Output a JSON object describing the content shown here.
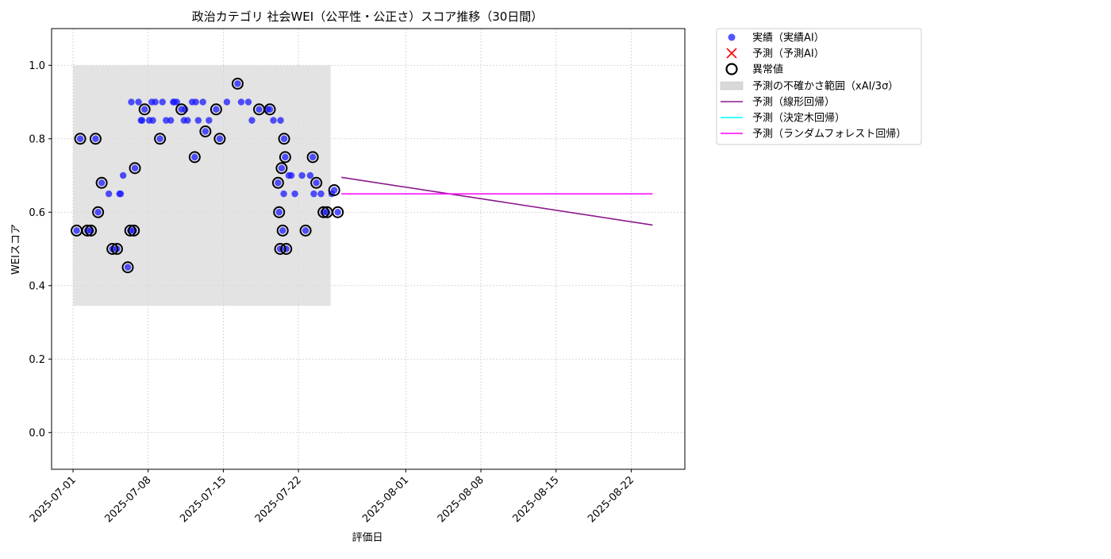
{
  "chart_data": {
    "type": "scatter",
    "title": "政治カテゴリ 社会WEI（公平性・公正さ）スコア推移（30日間）",
    "xlabel": "評価日",
    "ylabel": "WEIスコア",
    "xlim": [
      "2025-06-29",
      "2025-08-27"
    ],
    "ylim": [
      -0.1,
      1.1
    ],
    "xticks": [
      "2025-07-01",
      "2025-07-08",
      "2025-07-15",
      "2025-07-22",
      "2025-08-01",
      "2025-08-08",
      "2025-08-15",
      "2025-08-22"
    ],
    "yticks": [
      "0.0",
      "0.2",
      "0.4",
      "0.6",
      "0.8",
      "1.0"
    ],
    "grid": true,
    "legend_position": "outside-upper-right",
    "legend": [
      {
        "label": "実績（実績AI）",
        "marker": "dot",
        "color": "#0000ff"
      },
      {
        "label": "予測（予測AI）",
        "marker": "x",
        "color": "#ff0000"
      },
      {
        "label": "異常値",
        "marker": "ring",
        "color": "#000000"
      },
      {
        "label": "予測の不確かさ範囲（xAI/3σ）",
        "marker": "band",
        "color": "#d9d9d9"
      },
      {
        "label": "予測（線形回帰）",
        "marker": "line",
        "color": "#8b1a8b"
      },
      {
        "label": "予測（決定木回帰）",
        "marker": "line",
        "color": "#00ffff"
      },
      {
        "label": "予測（ランダムフォレスト回帰）",
        "marker": "line",
        "color": "#ff00ff"
      }
    ],
    "actual": [
      [
        "2025-07-01",
        0.55
      ],
      [
        "2025-07-01",
        0.8
      ],
      [
        "2025-07-02",
        0.55
      ],
      [
        "2025-07-02",
        0.55
      ],
      [
        "2025-07-03",
        0.6
      ],
      [
        "2025-07-03",
        0.68
      ],
      [
        "2025-07-03",
        0.8
      ],
      [
        "2025-07-04",
        0.65
      ],
      [
        "2025-07-04",
        0.5
      ],
      [
        "2025-07-05",
        0.65
      ],
      [
        "2025-07-05",
        0.7
      ],
      [
        "2025-07-05",
        0.5
      ],
      [
        "2025-07-05",
        0.65
      ],
      [
        "2025-07-06",
        0.55
      ],
      [
        "2025-07-06",
        0.55
      ],
      [
        "2025-07-06",
        0.45
      ],
      [
        "2025-07-06",
        0.9
      ],
      [
        "2025-07-06",
        0.72
      ],
      [
        "2025-07-07",
        0.85
      ],
      [
        "2025-07-07",
        0.88
      ],
      [
        "2025-07-07",
        0.9
      ],
      [
        "2025-07-07",
        0.85
      ],
      [
        "2025-07-08",
        0.9
      ],
      [
        "2025-07-08",
        0.9
      ],
      [
        "2025-07-08",
        0.85
      ],
      [
        "2025-07-08",
        0.85
      ],
      [
        "2025-07-09",
        0.9
      ],
      [
        "2025-07-09",
        0.85
      ],
      [
        "2025-07-09",
        0.8
      ],
      [
        "2025-07-10",
        0.9
      ],
      [
        "2025-07-10",
        0.9
      ],
      [
        "2025-07-10",
        0.85
      ],
      [
        "2025-07-10",
        0.9
      ],
      [
        "2025-07-11",
        0.85
      ],
      [
        "2025-07-11",
        0.85
      ],
      [
        "2025-07-11",
        0.88
      ],
      [
        "2025-07-11",
        0.88
      ],
      [
        "2025-07-12",
        0.75
      ],
      [
        "2025-07-12",
        0.85
      ],
      [
        "2025-07-12",
        0.9
      ],
      [
        "2025-07-12",
        0.9
      ],
      [
        "2025-07-13",
        0.82
      ],
      [
        "2025-07-13",
        0.85
      ],
      [
        "2025-07-13",
        0.9
      ],
      [
        "2025-07-14",
        0.88
      ],
      [
        "2025-07-14",
        0.8
      ],
      [
        "2025-07-15",
        0.9
      ],
      [
        "2025-07-16",
        0.95
      ],
      [
        "2025-07-16",
        0.9
      ],
      [
        "2025-07-17",
        0.9
      ],
      [
        "2025-07-17",
        0.85
      ],
      [
        "2025-07-18",
        0.88
      ],
      [
        "2025-07-19",
        0.88
      ],
      [
        "2025-07-19",
        0.85
      ],
      [
        "2025-07-19",
        0.88
      ],
      [
        "2025-07-20",
        0.85
      ],
      [
        "2025-07-20",
        0.8
      ],
      [
        "2025-07-20",
        0.68
      ],
      [
        "2025-07-20",
        0.72
      ],
      [
        "2025-07-20",
        0.75
      ],
      [
        "2025-07-20",
        0.6
      ],
      [
        "2025-07-20",
        0.55
      ],
      [
        "2025-07-20",
        0.5
      ],
      [
        "2025-07-20",
        0.5
      ],
      [
        "2025-07-20",
        0.65
      ],
      [
        "2025-07-21",
        0.7
      ],
      [
        "2025-07-21",
        0.65
      ],
      [
        "2025-07-21",
        0.7
      ],
      [
        "2025-07-22",
        0.7
      ],
      [
        "2025-07-22",
        0.55
      ],
      [
        "2025-07-23",
        0.75
      ],
      [
        "2025-07-23",
        0.68
      ],
      [
        "2025-07-23",
        0.7
      ],
      [
        "2025-07-23",
        0.65
      ],
      [
        "2025-07-24",
        0.6
      ],
      [
        "2025-07-24",
        0.6
      ],
      [
        "2025-07-24",
        0.65
      ],
      [
        "2025-07-25",
        0.66
      ],
      [
        "2025-07-25",
        0.6
      ],
      [
        "2025-07-25",
        0.65
      ]
    ],
    "anomalies": [
      [
        "2025-07-01",
        0.55
      ],
      [
        "2025-07-01",
        0.8
      ],
      [
        "2025-07-02",
        0.55
      ],
      [
        "2025-07-02",
        0.55
      ],
      [
        "2025-07-03",
        0.6
      ],
      [
        "2025-07-03",
        0.68
      ],
      [
        "2025-07-03",
        0.8
      ],
      [
        "2025-07-04",
        0.5
      ],
      [
        "2025-07-05",
        0.5
      ],
      [
        "2025-07-06",
        0.55
      ],
      [
        "2025-07-06",
        0.55
      ],
      [
        "2025-07-06",
        0.45
      ],
      [
        "2025-07-06",
        0.72
      ],
      [
        "2025-07-07",
        0.88
      ],
      [
        "2025-07-09",
        0.8
      ],
      [
        "2025-07-11",
        0.88
      ],
      [
        "2025-07-12",
        0.75
      ],
      [
        "2025-07-13",
        0.82
      ],
      [
        "2025-07-14",
        0.88
      ],
      [
        "2025-07-14",
        0.8
      ],
      [
        "2025-07-16",
        0.95
      ],
      [
        "2025-07-18",
        0.88
      ],
      [
        "2025-07-19",
        0.88
      ],
      [
        "2025-07-20",
        0.8
      ],
      [
        "2025-07-20",
        0.68
      ],
      [
        "2025-07-20",
        0.72
      ],
      [
        "2025-07-20",
        0.75
      ],
      [
        "2025-07-20",
        0.6
      ],
      [
        "2025-07-20",
        0.55
      ],
      [
        "2025-07-20",
        0.5
      ],
      [
        "2025-07-20",
        0.5
      ],
      [
        "2025-07-22",
        0.55
      ],
      [
        "2025-07-23",
        0.75
      ],
      [
        "2025-07-23",
        0.68
      ],
      [
        "2025-07-24",
        0.6
      ],
      [
        "2025-07-24",
        0.6
      ],
      [
        "2025-07-25",
        0.66
      ],
      [
        "2025-07-25",
        0.6
      ]
    ],
    "uncertainty_band": {
      "x": [
        "2025-07-01",
        "2025-07-25"
      ],
      "y": [
        0.345,
        1.0
      ]
    },
    "forecast_linear": [
      [
        "2025-07-26",
        0.695
      ],
      [
        "2025-08-24",
        0.565
      ]
    ],
    "forecast_random_forest": [
      [
        "2025-07-26",
        0.65
      ],
      [
        "2025-08-24",
        0.65
      ]
    ],
    "colors": {
      "actual": "#1a1aff",
      "anomaly": "#000000",
      "band": "#d9d9d9",
      "linear": "#8b1a8b",
      "tree": "#00ffff",
      "forest": "#ff00ff",
      "predict_x": "#ff0000",
      "grid": "#cccccc"
    }
  }
}
